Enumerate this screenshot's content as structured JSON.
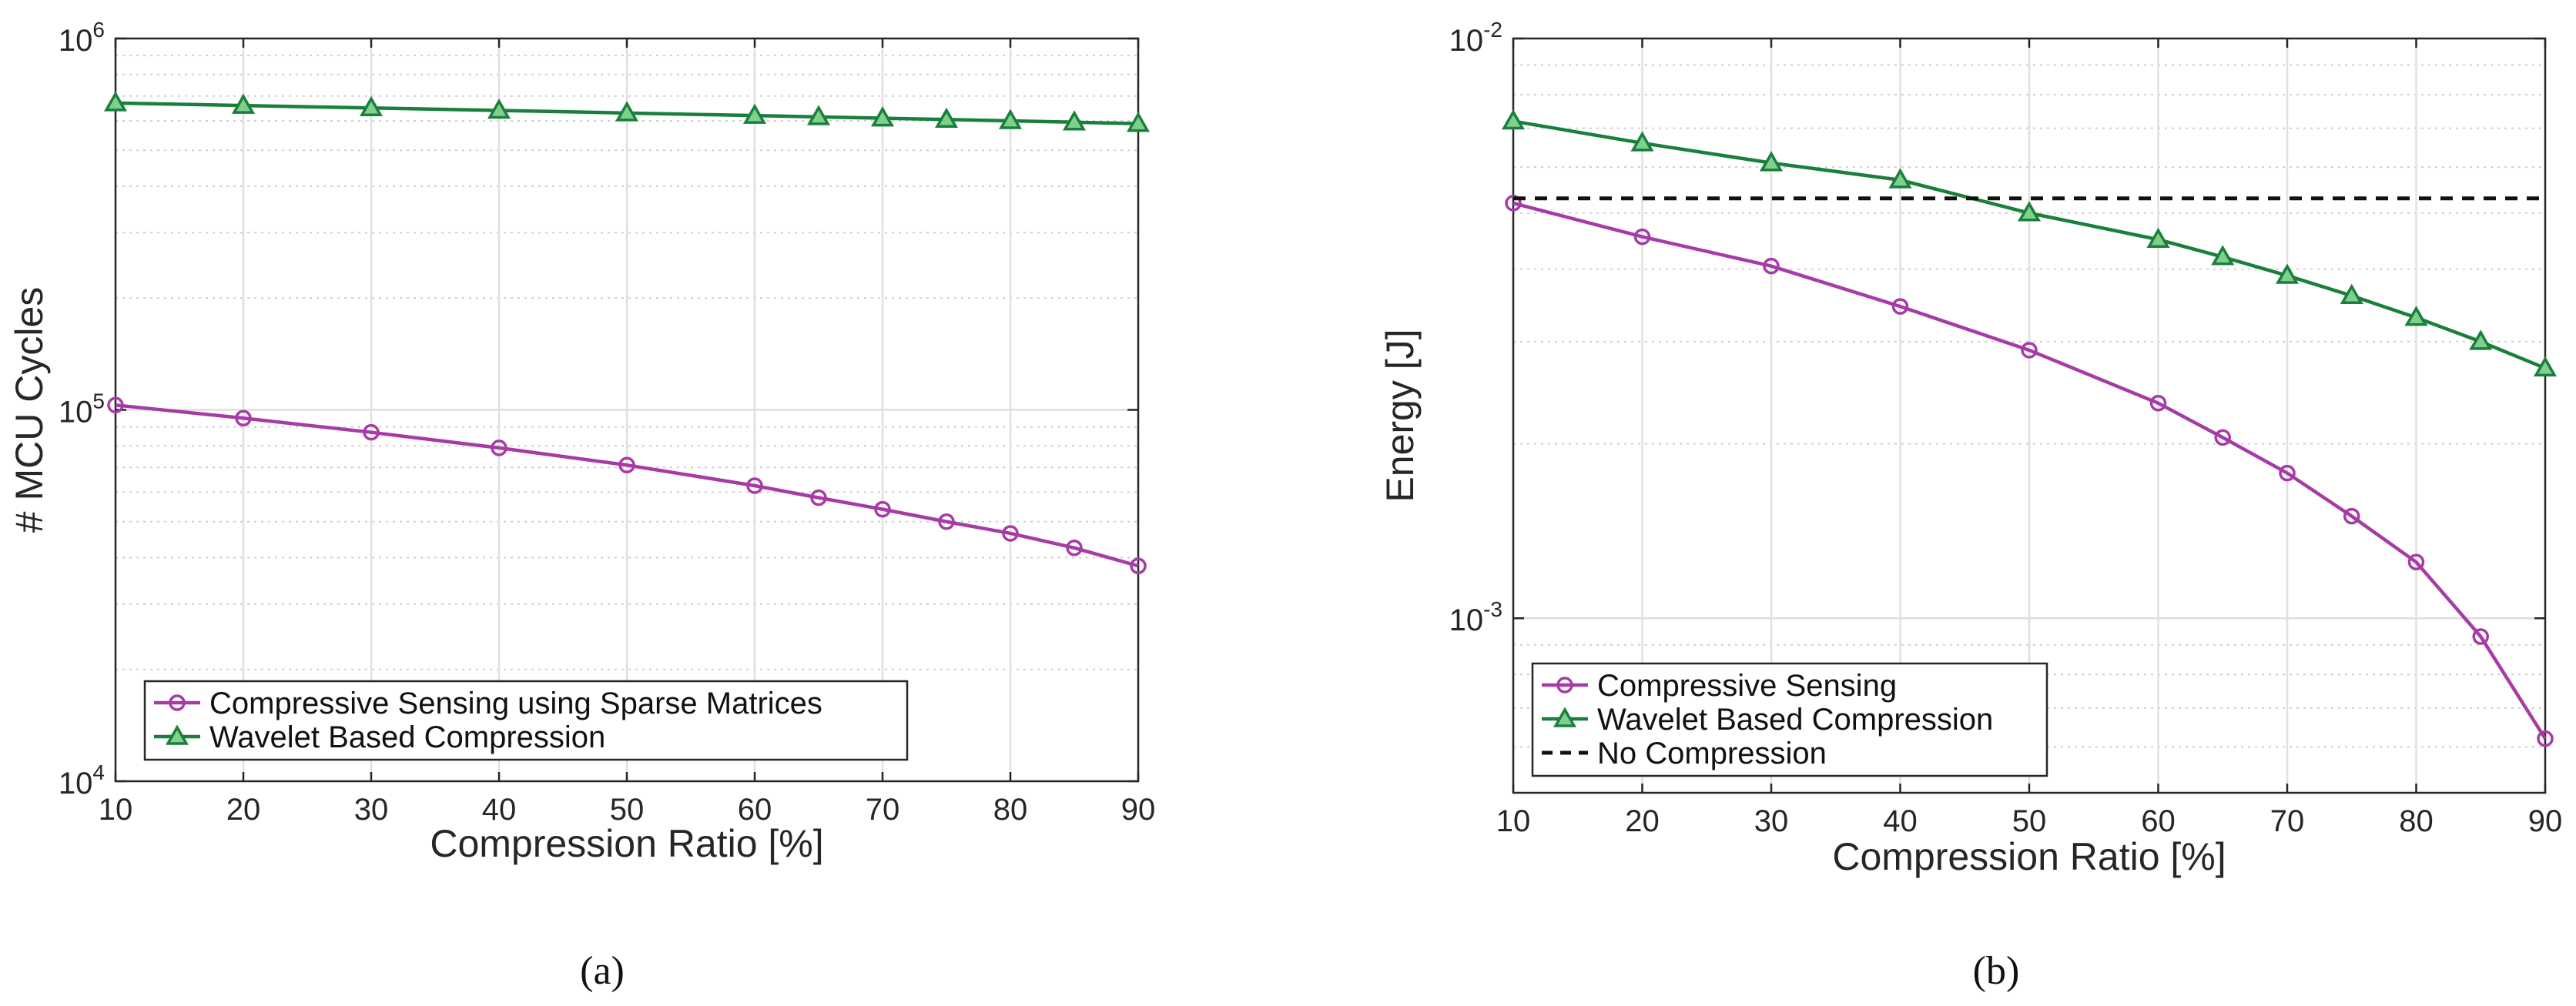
{
  "chart_data": [
    {
      "type": "line",
      "yscale": "log",
      "caption": "(a)",
      "xlabel": "Compression Ratio [%]",
      "ylabel": "# MCU Cycles",
      "xlim": [
        10,
        90
      ],
      "ylim": [
        10000,
        1000000
      ],
      "xticks": [
        "10",
        "20",
        "30",
        "40",
        "50",
        "60",
        "70",
        "80",
        "90"
      ],
      "yticks": [
        {
          "base": "10",
          "exp": "4"
        },
        {
          "base": "10",
          "exp": "5"
        },
        {
          "base": "10",
          "exp": "6"
        }
      ],
      "legend_position": "bottom-left",
      "series": [
        {
          "name": "Compressive Sensing using Sparse Matrices",
          "color": "#a63ba6",
          "marker": "circle",
          "x": [
            10,
            20,
            30,
            40,
            50,
            60,
            65,
            70,
            75,
            80,
            85,
            90
          ],
          "values": [
            103000,
            95000,
            87000,
            79000,
            71000,
            62500,
            58000,
            54000,
            50000,
            46500,
            42500,
            38000
          ]
        },
        {
          "name": "Wavelet Based Compression",
          "color": "#1a7f3c",
          "marker": "triangle",
          "x": [
            10,
            20,
            30,
            40,
            50,
            60,
            65,
            70,
            75,
            80,
            85,
            90
          ],
          "values": [
            670000,
            660000,
            650000,
            640000,
            630000,
            620000,
            615000,
            610000,
            605000,
            600000,
            595000,
            590000
          ]
        }
      ]
    },
    {
      "type": "line",
      "yscale": "log",
      "caption": "(b)",
      "xlabel": "Compression Ratio [%]",
      "ylabel": "Energy  [J]",
      "xlim": [
        10,
        90
      ],
      "ylim": [
        0.0005,
        0.01
      ],
      "xticks": [
        "10",
        "20",
        "30",
        "40",
        "50",
        "60",
        "70",
        "80",
        "90"
      ],
      "yticks": [
        {
          "base": "10",
          "exp": "-3"
        },
        {
          "base": "10",
          "exp": "-2"
        }
      ],
      "legend_position": "bottom-left",
      "series": [
        {
          "name": "Compressive Sensing",
          "color": "#a63ba6",
          "marker": "circle",
          "x": [
            10,
            20,
            30,
            40,
            50,
            60,
            65,
            70,
            75,
            80,
            85,
            90
          ],
          "values": [
            0.0052,
            0.00455,
            0.00405,
            0.00345,
            0.0029,
            0.00235,
            0.00205,
            0.00178,
            0.0015,
            0.00125,
            0.00093,
            0.00062
          ]
        },
        {
          "name": "Wavelet Based Compression",
          "color": "#1a7f3c",
          "marker": "triangle",
          "x": [
            10,
            20,
            30,
            40,
            50,
            60,
            65,
            70,
            75,
            80,
            85,
            90
          ],
          "values": [
            0.0072,
            0.0066,
            0.0061,
            0.0057,
            0.005,
            0.0045,
            0.0042,
            0.0039,
            0.0036,
            0.0033,
            0.003,
            0.0027
          ]
        },
        {
          "name": "No Compression",
          "color": "#111111",
          "marker": "none",
          "dashed": true,
          "x": [
            10,
            90
          ],
          "values": [
            0.0053,
            0.0053
          ]
        }
      ]
    }
  ]
}
